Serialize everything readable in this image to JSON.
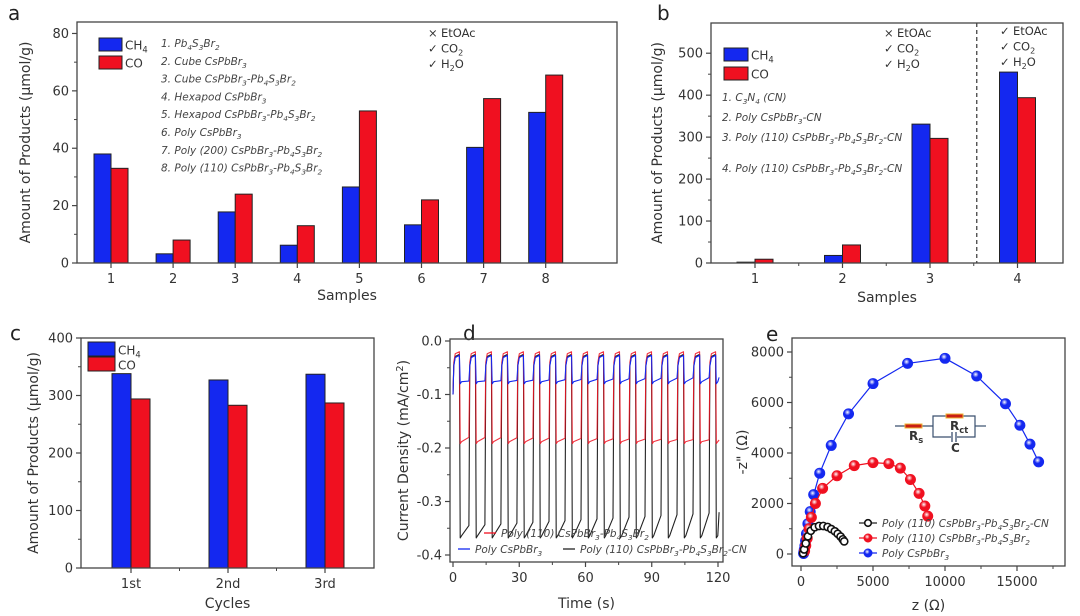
{
  "colors": {
    "ch4": "#1428f0",
    "co": "#f01020",
    "black": "#222222",
    "frame": "#444444",
    "resistor": "#c81e14",
    "resistor_outline": "#f0b432",
    "circuit": "#3a4f6e"
  },
  "chart_data": [
    {
      "id": "a",
      "panel_label": "a",
      "type": "bar",
      "xlabel": "Samples",
      "ylabel": "Amount of Products (µmol/g)",
      "ylim": [
        0,
        84
      ],
      "yticks": [
        0,
        20,
        40,
        60,
        80
      ],
      "categories": [
        "1",
        "2",
        "3",
        "4",
        "5",
        "6",
        "7",
        "8"
      ],
      "series": [
        {
          "name": "CH4",
          "label_main": "CH",
          "label_sub": "4",
          "color_key": "ch4",
          "values": [
            38,
            3.2,
            17.8,
            6.2,
            26.5,
            13.3,
            40.3,
            52.5
          ]
        },
        {
          "name": "CO",
          "label_main": "CO",
          "label_sub": "",
          "color_key": "co",
          "values": [
            33,
            8,
            24,
            13,
            53,
            22,
            57.3,
            65.5
          ]
        }
      ],
      "sample_list": [
        {
          "n": "1.",
          "parts": [
            [
              "Pb",
              ""
            ],
            [
              "4",
              "sub"
            ],
            [
              "S",
              ""
            ],
            [
              "3",
              "sub"
            ],
            [
              "Br",
              ""
            ],
            [
              "2",
              "sub"
            ]
          ]
        },
        {
          "n": "2.",
          "parts": [
            [
              "Cube CsPbBr",
              ""
            ],
            [
              "3",
              "sub"
            ]
          ]
        },
        {
          "n": "3.",
          "parts": [
            [
              "Cube CsPbBr",
              ""
            ],
            [
              "3",
              "sub"
            ],
            [
              "-Pb",
              ""
            ],
            [
              "4",
              "sub"
            ],
            [
              "S",
              ""
            ],
            [
              "3",
              "sub"
            ],
            [
              "Br",
              ""
            ],
            [
              "2",
              "sub"
            ]
          ]
        },
        {
          "n": "4.",
          "parts": [
            [
              "Hexapod CsPbBr",
              ""
            ],
            [
              "3",
              "sub"
            ]
          ]
        },
        {
          "n": "5.",
          "parts": [
            [
              "Hexapod CsPbBr",
              ""
            ],
            [
              "3",
              "sub"
            ],
            [
              "-Pb",
              ""
            ],
            [
              "4",
              "sub"
            ],
            [
              "S",
              ""
            ],
            [
              "3",
              "sub"
            ],
            [
              "Br",
              ""
            ],
            [
              "2",
              "sub"
            ]
          ]
        },
        {
          "n": "6.",
          "parts": [
            [
              "Poly CsPbBr",
              ""
            ],
            [
              "3",
              "sub"
            ]
          ]
        },
        {
          "n": "7.",
          "parts": [
            [
              "Poly (200) CsPbBr",
              ""
            ],
            [
              "3",
              "sub"
            ],
            [
              "-Pb",
              ""
            ],
            [
              "4",
              "sub"
            ],
            [
              "S",
              ""
            ],
            [
              "3",
              "sub"
            ],
            [
              "Br",
              ""
            ],
            [
              "2",
              "sub"
            ]
          ]
        },
        {
          "n": "8.",
          "parts": [
            [
              "Poly (110) CsPbBr",
              ""
            ],
            [
              "3",
              "sub"
            ],
            [
              "-Pb",
              ""
            ],
            [
              "4",
              "sub"
            ],
            [
              "S",
              ""
            ],
            [
              "3",
              "sub"
            ],
            [
              "Br",
              ""
            ],
            [
              "2",
              "sub"
            ]
          ]
        }
      ],
      "conditions": [
        {
          "mark": "×",
          "main": "EtOAc",
          "sub": "",
          "tail": ""
        },
        {
          "mark": "✓",
          "main": "CO",
          "sub": "2",
          "tail": ""
        },
        {
          "mark": "✓",
          "main": "H",
          "sub": "2",
          "tail": "O"
        }
      ]
    },
    {
      "id": "b",
      "panel_label": "b",
      "type": "bar",
      "xlabel": "Samples",
      "ylabel": "Amount of Products (µmol/g)",
      "ylim": [
        0,
        572
      ],
      "yticks": [
        0,
        100,
        200,
        300,
        400,
        500
      ],
      "categories": [
        "1",
        "2",
        "3",
        "4"
      ],
      "series": [
        {
          "name": "CH4",
          "label_main": "CH",
          "label_sub": "4",
          "color_key": "ch4",
          "values": [
            2,
            18,
            331,
            455
          ]
        },
        {
          "name": "CO",
          "label_main": "CO",
          "label_sub": "",
          "color_key": "co",
          "values": [
            9,
            43,
            297,
            394
          ]
        }
      ],
      "sample_list": [
        {
          "n": "1.",
          "parts": [
            [
              "C",
              ""
            ],
            [
              "3",
              "sub"
            ],
            [
              "N",
              ""
            ],
            [
              "4",
              "sub"
            ],
            [
              " (CN)",
              ""
            ]
          ]
        },
        {
          "n": "2.",
          "parts": [
            [
              "Poly CsPbBr",
              ""
            ],
            [
              "3",
              "sub"
            ],
            [
              "-CN",
              ""
            ]
          ]
        },
        {
          "n": "3.",
          "parts": [
            [
              "Poly (110) CsPbBr",
              ""
            ],
            [
              "3",
              "sub"
            ],
            [
              "-Pb",
              ""
            ],
            [
              "4",
              "sub"
            ],
            [
              "S",
              ""
            ],
            [
              "3",
              "sub"
            ],
            [
              "Br",
              ""
            ],
            [
              "2",
              "sub"
            ],
            [
              "-CN",
              ""
            ]
          ]
        },
        {
          "n": "4.",
          "parts": [
            [
              "Poly (110) CsPbBr",
              ""
            ],
            [
              "3",
              "sub"
            ],
            [
              "-Pb",
              ""
            ],
            [
              "4",
              "sub"
            ],
            [
              "S",
              ""
            ],
            [
              "3",
              "sub"
            ],
            [
              "Br",
              ""
            ],
            [
              "2",
              "sub"
            ],
            [
              "-CN",
              ""
            ]
          ]
        }
      ],
      "conditions_left": [
        {
          "mark": "×",
          "main": "EtOAc",
          "sub": "",
          "tail": ""
        },
        {
          "mark": "✓",
          "main": "CO",
          "sub": "2",
          "tail": ""
        },
        {
          "mark": "✓",
          "main": "H",
          "sub": "2",
          "tail": "O"
        }
      ],
      "conditions_right": [
        {
          "mark": "✓",
          "main": "EtOAc",
          "sub": "",
          "tail": ""
        },
        {
          "mark": "✓",
          "main": "CO",
          "sub": "2",
          "tail": ""
        },
        {
          "mark": "✓",
          "main": "H",
          "sub": "2",
          "tail": "O"
        }
      ],
      "divider_between": [
        3,
        4
      ]
    },
    {
      "id": "c",
      "panel_label": "c",
      "type": "bar",
      "xlabel": "Cycles",
      "ylabel": "Amount of Products (µmol/g)",
      "ylim": [
        0,
        400
      ],
      "yticks": [
        0,
        100,
        200,
        300,
        400
      ],
      "categories": [
        "1st",
        "2nd",
        "3rd"
      ],
      "series": [
        {
          "name": "CH4",
          "label_main": "CH",
          "label_sub": "4",
          "color_key": "ch4",
          "values": [
            338,
            327,
            337
          ]
        },
        {
          "name": "CO",
          "label_main": "CO",
          "label_sub": "",
          "color_key": "co",
          "values": [
            294,
            283,
            287
          ]
        }
      ]
    },
    {
      "id": "d",
      "panel_label": "d",
      "type": "line",
      "xlabel": "Time (s)",
      "ylabel_main": "Current Density (mA/cm",
      "ylabel_sup": "2",
      "ylabel_tail": ")",
      "xlim": [
        -1,
        121
      ],
      "ylim": [
        -0.415,
        0.0
      ],
      "xticks": [
        0,
        30,
        60,
        90,
        120
      ],
      "yticks": [
        0.0,
        -0.1,
        -0.2,
        -0.3,
        -0.4
      ],
      "ytick_labels": [
        "0.0",
        "-0.1",
        "-0.2",
        "-0.3",
        "-0.4"
      ],
      "pulse_period_s": 7.25,
      "pulse_count": 17,
      "series": [
        {
          "name": "Poly (110) CsPbBr3-Pb4S3Br2-CN",
          "color_key": "black",
          "on_level": -0.025,
          "off_start": -0.368,
          "off_end": -0.345,
          "off_end_last": -0.32
        },
        {
          "name": "Poly (110) CsPbBr3-Pb4S3Br2",
          "color_key": "co",
          "on_level": -0.02,
          "off_start": -0.192,
          "off_end": -0.18,
          "off_end_last": -0.185
        },
        {
          "name": "Poly CsPbBr3",
          "color_key": "ch4",
          "on_level": -0.027,
          "off_start": -0.08,
          "off_end": -0.075,
          "off_end_last": -0.068
        }
      ],
      "legend": [
        {
          "color_key": "co",
          "parts": [
            [
              "Poly (110) CsPbBr",
              ""
            ],
            [
              "3",
              "sub"
            ],
            [
              "-Pb",
              ""
            ],
            [
              "4",
              "sub"
            ],
            [
              "S",
              ""
            ],
            [
              "3",
              "sub"
            ],
            [
              "Br",
              ""
            ],
            [
              "2",
              "sub"
            ]
          ]
        },
        {
          "color_key": "ch4",
          "parts": [
            [
              "Poly CsPbBr",
              ""
            ],
            [
              "3",
              "sub"
            ]
          ]
        },
        {
          "color_key": "black",
          "parts": [
            [
              "Poly (110) CsPbBr",
              ""
            ],
            [
              "3",
              "sub"
            ],
            [
              "-Pb",
              ""
            ],
            [
              "4",
              "sub"
            ],
            [
              "S",
              ""
            ],
            [
              "3",
              "sub"
            ],
            [
              "Br",
              ""
            ],
            [
              "2",
              "sub"
            ],
            [
              "-CN",
              ""
            ]
          ]
        }
      ]
    },
    {
      "id": "e",
      "panel_label": "e",
      "type": "scatter",
      "xlabel": "z (Ω)",
      "ylabel": "-z\" (Ω)",
      "xlim": [
        -600,
        18300
      ],
      "ylim": [
        -500,
        8600
      ],
      "xticks": [
        0,
        5000,
        10000,
        15000
      ],
      "yticks": [
        0,
        2000,
        4000,
        6000,
        8000
      ],
      "series": [
        {
          "name": "Poly CsPbBr3",
          "color_key": "ch4",
          "points": [
            [
              180,
              20
            ],
            [
              200,
              80
            ],
            [
              230,
              180
            ],
            [
              270,
              320
            ],
            [
              320,
              520
            ],
            [
              380,
              800
            ],
            [
              480,
              1200
            ],
            [
              640,
              1680
            ],
            [
              880,
              2350
            ],
            [
              1300,
              3200
            ],
            [
              2100,
              4300
            ],
            [
              3300,
              5550
            ],
            [
              5000,
              6750
            ],
            [
              7400,
              7550
            ],
            [
              10000,
              7750
            ],
            [
              12200,
              7050
            ],
            [
              14200,
              5950
            ],
            [
              15200,
              5100
            ],
            [
              15900,
              4350
            ],
            [
              16500,
              3650
            ]
          ]
        },
        {
          "name": "Poly (110) CsPbBr3-Pb4S3Br2",
          "color_key": "co",
          "points": [
            [
              250,
              120
            ],
            [
              330,
              330
            ],
            [
              430,
              620
            ],
            [
              560,
              1000
            ],
            [
              720,
              1450
            ],
            [
              1000,
              2000
            ],
            [
              1500,
              2600
            ],
            [
              2500,
              3100
            ],
            [
              3700,
              3500
            ],
            [
              5000,
              3620
            ],
            [
              6100,
              3580
            ],
            [
              6900,
              3400
            ],
            [
              7600,
              2950
            ],
            [
              8200,
              2400
            ],
            [
              8600,
              1900
            ],
            [
              8800,
              1500
            ]
          ]
        },
        {
          "name": "Poly (110) CsPbBr3-Pb4S3Br2-CN",
          "color_key": "black",
          "points": [
            [
              150,
              30
            ],
            [
              220,
              180
            ],
            [
              330,
              420
            ],
            [
              480,
              700
            ],
            [
              680,
              920
            ],
            [
              950,
              1060
            ],
            [
              1250,
              1110
            ],
            [
              1550,
              1110
            ],
            [
              1850,
              1070
            ],
            [
              2100,
              990
            ],
            [
              2350,
              900
            ],
            [
              2550,
              800
            ],
            [
              2750,
              690
            ],
            [
              2900,
              580
            ],
            [
              3000,
              500
            ]
          ]
        }
      ],
      "legend": [
        {
          "color_key": "black",
          "parts": [
            [
              "Poly (110) CsPbBr",
              ""
            ],
            [
              "3",
              "sub"
            ],
            [
              "-Pb",
              ""
            ],
            [
              "4",
              "sub"
            ],
            [
              "S",
              ""
            ],
            [
              "3",
              "sub"
            ],
            [
              "Br",
              ""
            ],
            [
              "2",
              "sub"
            ],
            [
              "-CN",
              ""
            ]
          ]
        },
        {
          "color_key": "co",
          "parts": [
            [
              "Poly (110) CsPbBr",
              ""
            ],
            [
              "3",
              "sub"
            ],
            [
              "-Pb",
              ""
            ],
            [
              "4",
              "sub"
            ],
            [
              "S",
              ""
            ],
            [
              "3",
              "sub"
            ],
            [
              "Br",
              ""
            ],
            [
              "2",
              "sub"
            ]
          ]
        },
        {
          "color_key": "ch4",
          "parts": [
            [
              "Poly CsPbBr",
              ""
            ],
            [
              "3",
              "sub"
            ]
          ]
        }
      ],
      "inset": {
        "label_rs_main": "R",
        "label_rs_sub": "s",
        "label_rct_main": "R",
        "label_rct_sub": "ct",
        "label_c": "C"
      }
    }
  ]
}
